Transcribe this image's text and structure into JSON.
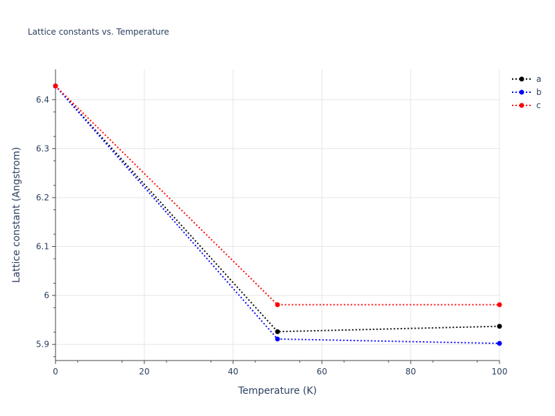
{
  "chart_data": {
    "type": "line",
    "title": "Lattice constants vs. Temperature",
    "xlabel": "Temperature (K)",
    "ylabel": "Lattice constant (Angstrom)",
    "xlim": [
      0,
      100
    ],
    "ylim": [
      5.867,
      6.462
    ],
    "x_ticks": [
      0,
      20,
      40,
      60,
      80,
      100
    ],
    "y_ticks": [
      5.9,
      6,
      6.1,
      6.2,
      6.3,
      6.4
    ],
    "x_tick_labels": [
      "0",
      "20",
      "40",
      "60",
      "80",
      "100"
    ],
    "y_tick_labels": [
      "5.9",
      "6",
      "6.1",
      "6.2",
      "6.3",
      "6.4"
    ],
    "grid": true,
    "legend_position": "top-right",
    "line_style": "dotted",
    "x": [
      0,
      50,
      100
    ],
    "series": [
      {
        "name": "a",
        "color": "#000000",
        "values": [
          6.428,
          5.926,
          5.937
        ]
      },
      {
        "name": "b",
        "color": "#0000ff",
        "values": [
          6.428,
          5.911,
          5.902
        ]
      },
      {
        "name": "c",
        "color": "#ff0000",
        "values": [
          6.428,
          5.981,
          5.981
        ]
      }
    ]
  }
}
